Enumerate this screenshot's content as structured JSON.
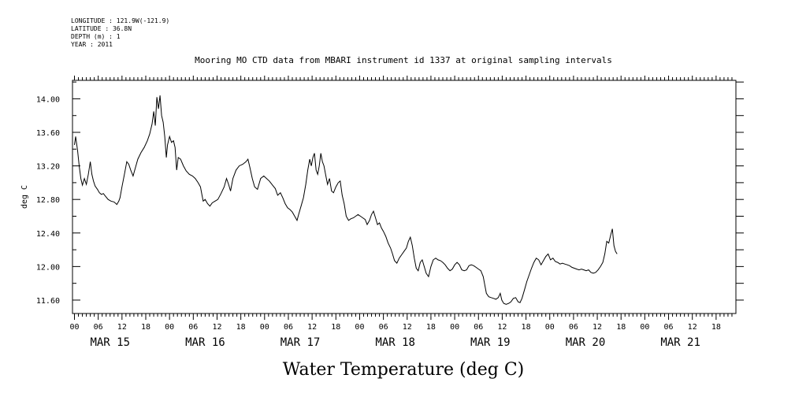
{
  "header": {
    "longitude": "LONGITUDE : 121.9W(-121.9)",
    "latitude": "LATITUDE : 36.8N",
    "depth": "DEPTH (m) : 1",
    "year": "YEAR : 2011"
  },
  "chart_data": {
    "type": "line",
    "title": "Mooring MO CTD data from MBARI instrument id 1337 at original sampling intervals",
    "xlabel": "Water Temperature (deg C)",
    "ylabel": "deg C",
    "ylim": [
      11.44,
      14.22
    ],
    "xlim_hours": [
      -0.5,
      167
    ],
    "y_ticks": [
      "11.60",
      "12.00",
      "12.40",
      "12.80",
      "13.20",
      "13.60",
      "14.00"
    ],
    "hour_ticks": [
      "00",
      "06",
      "12",
      "18"
    ],
    "date_labels": [
      "MAR 15",
      "MAR 16",
      "MAR 17",
      "MAR 18",
      "MAR 19",
      "MAR 20",
      "MAR 21"
    ],
    "grid": false,
    "series": [
      {
        "values": [
          [
            0,
            13.45
          ],
          [
            0.3,
            13.55
          ],
          [
            0.8,
            13.38
          ],
          [
            1.2,
            13.2
          ],
          [
            1.6,
            13.05
          ],
          [
            2,
            12.97
          ],
          [
            2.5,
            13.05
          ],
          [
            3,
            12.98
          ],
          [
            3.5,
            13.1
          ],
          [
            4,
            13.25
          ],
          [
            4.4,
            13.1
          ],
          [
            4.8,
            13.02
          ],
          [
            5.2,
            12.96
          ],
          [
            5.8,
            12.92
          ],
          [
            6.3,
            12.88
          ],
          [
            6.8,
            12.86
          ],
          [
            7.3,
            12.87
          ],
          [
            7.8,
            12.84
          ],
          [
            8.5,
            12.8
          ],
          [
            9.2,
            12.78
          ],
          [
            10,
            12.77
          ],
          [
            10.7,
            12.74
          ],
          [
            11.2,
            12.78
          ],
          [
            11.5,
            12.82
          ],
          [
            12,
            12.95
          ],
          [
            12.6,
            13.1
          ],
          [
            13.2,
            13.25
          ],
          [
            13.7,
            13.22
          ],
          [
            14.2,
            13.15
          ],
          [
            14.8,
            13.08
          ],
          [
            15.4,
            13.18
          ],
          [
            16,
            13.28
          ],
          [
            16.8,
            13.36
          ],
          [
            17.6,
            13.42
          ],
          [
            18.4,
            13.5
          ],
          [
            19,
            13.58
          ],
          [
            19.6,
            13.7
          ],
          [
            20,
            13.85
          ],
          [
            20.4,
            13.68
          ],
          [
            20.8,
            14.02
          ],
          [
            21.2,
            13.88
          ],
          [
            21.6,
            14.04
          ],
          [
            22,
            13.8
          ],
          [
            22.4,
            13.72
          ],
          [
            22.8,
            13.55
          ],
          [
            23.2,
            13.3
          ],
          [
            23.5,
            13.45
          ],
          [
            24,
            13.55
          ],
          [
            24.5,
            13.48
          ],
          [
            25,
            13.5
          ],
          [
            25.4,
            13.42
          ],
          [
            25.8,
            13.15
          ],
          [
            26.2,
            13.3
          ],
          [
            26.8,
            13.28
          ],
          [
            27.5,
            13.2
          ],
          [
            28.2,
            13.14
          ],
          [
            29,
            13.1
          ],
          [
            29.8,
            13.08
          ],
          [
            30.5,
            13.05
          ],
          [
            31.2,
            13
          ],
          [
            31.8,
            12.95
          ],
          [
            32.2,
            12.85
          ],
          [
            32.5,
            12.78
          ],
          [
            33,
            12.8
          ],
          [
            33.6,
            12.75
          ],
          [
            34.2,
            12.72
          ],
          [
            34.8,
            12.76
          ],
          [
            35.5,
            12.78
          ],
          [
            36.2,
            12.8
          ],
          [
            37,
            12.87
          ],
          [
            37.8,
            12.95
          ],
          [
            38.4,
            13.05
          ],
          [
            38.9,
            12.98
          ],
          [
            39.4,
            12.9
          ],
          [
            40,
            13.05
          ],
          [
            40.8,
            13.15
          ],
          [
            41.6,
            13.2
          ],
          [
            42.5,
            13.22
          ],
          [
            43.3,
            13.25
          ],
          [
            43.8,
            13.28
          ],
          [
            44.3,
            13.18
          ],
          [
            44.9,
            13.05
          ],
          [
            45.5,
            12.95
          ],
          [
            46.2,
            12.92
          ],
          [
            47,
            13.05
          ],
          [
            47.8,
            13.08
          ],
          [
            48.5,
            13.05
          ],
          [
            49.2,
            13.02
          ],
          [
            50,
            12.97
          ],
          [
            50.7,
            12.93
          ],
          [
            51.3,
            12.85
          ],
          [
            52,
            12.88
          ],
          [
            52.6,
            12.82
          ],
          [
            53.2,
            12.75
          ],
          [
            53.8,
            12.7
          ],
          [
            54.4,
            12.68
          ],
          [
            55,
            12.65
          ],
          [
            55.6,
            12.6
          ],
          [
            56.2,
            12.55
          ],
          [
            56.6,
            12.62
          ],
          [
            57.2,
            12.72
          ],
          [
            57.8,
            12.82
          ],
          [
            58.4,
            12.98
          ],
          [
            58.9,
            13.15
          ],
          [
            59.4,
            13.28
          ],
          [
            59.8,
            13.2
          ],
          [
            60.2,
            13.3
          ],
          [
            60.6,
            13.35
          ],
          [
            61,
            13.15
          ],
          [
            61.4,
            13.1
          ],
          [
            61.8,
            13.2
          ],
          [
            62.2,
            13.35
          ],
          [
            62.6,
            13.25
          ],
          [
            63,
            13.2
          ],
          [
            63.4,
            13.1
          ],
          [
            63.9,
            12.98
          ],
          [
            64.4,
            13.05
          ],
          [
            64.9,
            12.9
          ],
          [
            65.4,
            12.88
          ],
          [
            66,
            12.95
          ],
          [
            66.6,
            13
          ],
          [
            67.1,
            13.02
          ],
          [
            67.6,
            12.85
          ],
          [
            68.1,
            12.75
          ],
          [
            68.6,
            12.6
          ],
          [
            69.2,
            12.55
          ],
          [
            69.8,
            12.57
          ],
          [
            70.4,
            12.58
          ],
          [
            71,
            12.6
          ],
          [
            71.6,
            12.62
          ],
          [
            72.2,
            12.6
          ],
          [
            72.8,
            12.58
          ],
          [
            73.4,
            12.56
          ],
          [
            73.9,
            12.5
          ],
          [
            74.5,
            12.55
          ],
          [
            75,
            12.62
          ],
          [
            75.5,
            12.66
          ],
          [
            76,
            12.58
          ],
          [
            76.5,
            12.5
          ],
          [
            77,
            12.52
          ],
          [
            77.5,
            12.46
          ],
          [
            78,
            12.42
          ],
          [
            78.6,
            12.36
          ],
          [
            79.2,
            12.28
          ],
          [
            79.8,
            12.22
          ],
          [
            80.3,
            12.15
          ],
          [
            80.8,
            12.07
          ],
          [
            81.4,
            12.04
          ],
          [
            82,
            12.1
          ],
          [
            82.6,
            12.14
          ],
          [
            83.2,
            12.18
          ],
          [
            83.8,
            12.22
          ],
          [
            84.3,
            12.3
          ],
          [
            84.8,
            12.35
          ],
          [
            85.3,
            12.25
          ],
          [
            85.8,
            12.1
          ],
          [
            86.3,
            11.98
          ],
          [
            86.8,
            11.95
          ],
          [
            87.3,
            12.05
          ],
          [
            87.8,
            12.08
          ],
          [
            88.3,
            12
          ],
          [
            88.8,
            11.92
          ],
          [
            89.4,
            11.88
          ],
          [
            90,
            12
          ],
          [
            90.6,
            12.08
          ],
          [
            91.2,
            12.1
          ],
          [
            91.8,
            12.08
          ],
          [
            92.4,
            12.07
          ],
          [
            93,
            12.05
          ],
          [
            93.6,
            12.02
          ],
          [
            94.2,
            11.98
          ],
          [
            94.8,
            11.95
          ],
          [
            95.4,
            11.97
          ],
          [
            96,
            12.02
          ],
          [
            96.6,
            12.05
          ],
          [
            97.2,
            12.02
          ],
          [
            97.8,
            11.96
          ],
          [
            98.4,
            11.95
          ],
          [
            99,
            11.96
          ],
          [
            99.6,
            12.01
          ],
          [
            100.2,
            12.02
          ],
          [
            100.8,
            12.01
          ],
          [
            101.4,
            11.99
          ],
          [
            102,
            11.97
          ],
          [
            102.6,
            11.95
          ],
          [
            103.2,
            11.88
          ],
          [
            103.6,
            11.78
          ],
          [
            104,
            11.68
          ],
          [
            104.6,
            11.64
          ],
          [
            105.2,
            11.63
          ],
          [
            105.8,
            11.62
          ],
          [
            106.4,
            11.61
          ],
          [
            107,
            11.63
          ],
          [
            107.5,
            11.68
          ],
          [
            107.9,
            11.6
          ],
          [
            108.4,
            11.56
          ],
          [
            109,
            11.55
          ],
          [
            109.6,
            11.56
          ],
          [
            110.2,
            11.58
          ],
          [
            110.8,
            11.62
          ],
          [
            111.4,
            11.63
          ],
          [
            112,
            11.58
          ],
          [
            112.5,
            11.57
          ],
          [
            113,
            11.62
          ],
          [
            113.6,
            11.72
          ],
          [
            114.2,
            11.82
          ],
          [
            114.8,
            11.9
          ],
          [
            115.4,
            11.98
          ],
          [
            116,
            12.05
          ],
          [
            116.6,
            12.1
          ],
          [
            117.2,
            12.08
          ],
          [
            117.8,
            12.02
          ],
          [
            118.4,
            12.07
          ],
          [
            119,
            12.12
          ],
          [
            119.6,
            12.15
          ],
          [
            120.2,
            12.08
          ],
          [
            120.8,
            12.1
          ],
          [
            121.4,
            12.06
          ],
          [
            122,
            12.05
          ],
          [
            122.6,
            12.03
          ],
          [
            123.2,
            12.04
          ],
          [
            123.8,
            12.03
          ],
          [
            124.4,
            12.02
          ],
          [
            125,
            12.01
          ],
          [
            125.6,
            11.99
          ],
          [
            126.2,
            11.98
          ],
          [
            126.8,
            11.97
          ],
          [
            127.4,
            11.96
          ],
          [
            128,
            11.97
          ],
          [
            128.6,
            11.96
          ],
          [
            129.2,
            11.95
          ],
          [
            129.8,
            11.96
          ],
          [
            130.4,
            11.93
          ],
          [
            131,
            11.92
          ],
          [
            131.6,
            11.93
          ],
          [
            132.2,
            11.96
          ],
          [
            132.8,
            12
          ],
          [
            133.4,
            12.05
          ],
          [
            133.9,
            12.15
          ],
          [
            134.4,
            12.3
          ],
          [
            134.9,
            12.28
          ],
          [
            135.4,
            12.38
          ],
          [
            135.8,
            12.45
          ],
          [
            136.2,
            12.25
          ],
          [
            136.6,
            12.18
          ],
          [
            137,
            12.15
          ]
        ]
      }
    ]
  }
}
